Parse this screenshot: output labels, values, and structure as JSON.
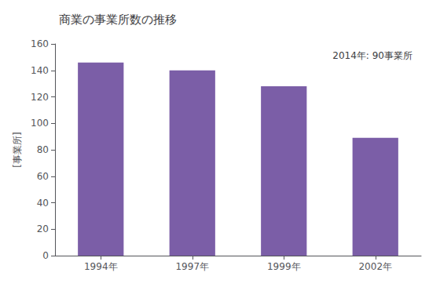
{
  "chart_data": {
    "type": "bar",
    "title": "商業の事業所数の推移",
    "ylabel": "[事業所]",
    "annotation": "2014年: 90事業所",
    "categories": [
      "1994年",
      "1997年",
      "1999年",
      "2002年"
    ],
    "values": [
      146,
      140,
      128,
      89
    ],
    "color": "#7B5EA7",
    "ylim": [
      0,
      160
    ],
    "yticks": [
      0,
      20,
      40,
      60,
      80,
      100,
      120,
      140,
      160
    ],
    "grid": false
  }
}
